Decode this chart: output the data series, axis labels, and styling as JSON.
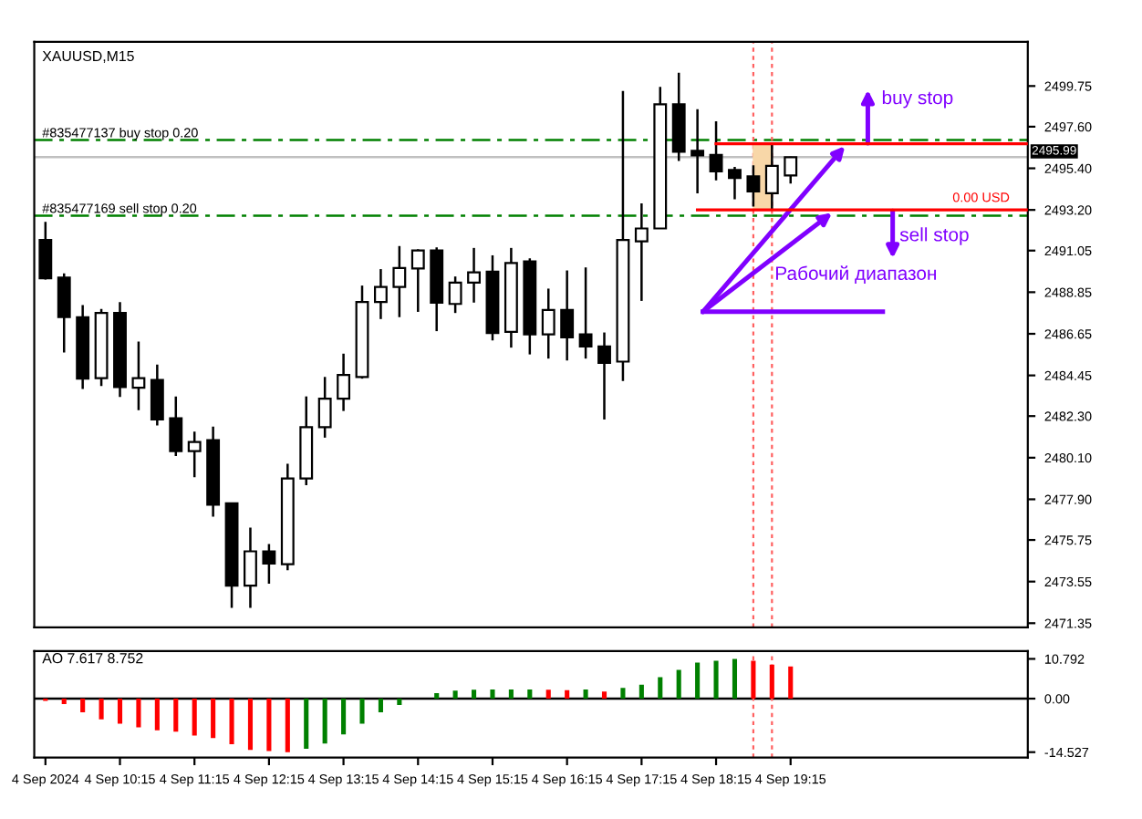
{
  "chart_data": [
    {
      "type": "candlestick",
      "title": "XAUUSD,M15",
      "x": [
        "2024-09-04T09:15",
        "2024-09-04T09:30",
        "2024-09-04T09:45",
        "2024-09-04T10:00",
        "2024-09-04T10:15",
        "2024-09-04T10:30",
        "2024-09-04T10:45",
        "2024-09-04T11:00",
        "2024-09-04T11:15",
        "2024-09-04T11:30",
        "2024-09-04T11:45",
        "2024-09-04T12:00",
        "2024-09-04T12:15",
        "2024-09-04T12:30",
        "2024-09-04T12:45",
        "2024-09-04T13:00",
        "2024-09-04T13:15",
        "2024-09-04T13:30",
        "2024-09-04T13:45",
        "2024-09-04T14:00",
        "2024-09-04T14:15",
        "2024-09-04T14:30",
        "2024-09-04T14:45",
        "2024-09-04T15:00",
        "2024-09-04T15:15",
        "2024-09-04T15:30",
        "2024-09-04T15:45",
        "2024-09-04T16:00",
        "2024-09-04T16:15",
        "2024-09-04T16:30",
        "2024-09-04T16:45",
        "2024-09-04T17:00",
        "2024-09-04T17:15",
        "2024-09-04T17:30",
        "2024-09-04T17:45",
        "2024-09-04T18:00",
        "2024-09-04T18:15",
        "2024-09-04T18:30",
        "2024-09-04T18:45",
        "2024-09-04T19:00",
        "2024-09-04T19:15"
      ],
      "ohlc": [
        [
          2491.61,
          2492.57,
          2489.52,
          2489.58
        ],
        [
          2489.62,
          2489.84,
          2485.66,
          2487.53
        ],
        [
          2487.53,
          2488.17,
          2483.73,
          2484.28
        ],
        [
          2484.31,
          2487.97,
          2483.89,
          2487.75
        ],
        [
          2487.75,
          2488.33,
          2483.31,
          2483.83
        ],
        [
          2483.8,
          2486.24,
          2482.61,
          2484.31
        ],
        [
          2484.21,
          2485.02,
          2481.8,
          2482.12
        ],
        [
          2482.19,
          2483.34,
          2480.19,
          2480.45
        ],
        [
          2480.45,
          2481.48,
          2479.07,
          2480.93
        ],
        [
          2481.03,
          2481.74,
          2476.98,
          2477.62
        ],
        [
          2477.69,
          2477.72,
          2472.16,
          2473.34
        ],
        [
          2473.34,
          2476.4,
          2472.16,
          2475.15
        ],
        [
          2475.15,
          2475.53,
          2473.44,
          2474.5
        ],
        [
          2474.47,
          2479.78,
          2474.15,
          2479.0
        ],
        [
          2479.0,
          2483.34,
          2478.65,
          2481.71
        ],
        [
          2481.71,
          2484.37,
          2481.16,
          2483.22
        ],
        [
          2483.22,
          2485.6,
          2482.57,
          2484.47
        ],
        [
          2484.37,
          2489.2,
          2484.28,
          2488.33
        ],
        [
          2488.33,
          2490.07,
          2487.43,
          2489.13
        ],
        [
          2489.13,
          2491.29,
          2487.53,
          2490.13
        ],
        [
          2490.1,
          2491.12,
          2487.81,
          2491.06
        ],
        [
          2491.06,
          2491.22,
          2486.79,
          2488.3
        ],
        [
          2488.23,
          2489.68,
          2487.75,
          2489.36
        ],
        [
          2489.36,
          2491.19,
          2488.3,
          2489.9
        ],
        [
          2489.94,
          2490.8,
          2486.3,
          2486.69
        ],
        [
          2486.75,
          2491.19,
          2485.92,
          2490.39
        ],
        [
          2490.48,
          2490.64,
          2485.56,
          2486.62
        ],
        [
          2486.62,
          2489.04,
          2485.34,
          2487.91
        ],
        [
          2487.91,
          2490.0,
          2485.24,
          2486.46
        ],
        [
          2486.62,
          2490.16,
          2485.34,
          2485.98
        ],
        [
          2485.98,
          2486.72,
          2482.12,
          2485.11
        ],
        [
          2485.18,
          2499.49,
          2484.15,
          2491.61
        ],
        [
          2491.54,
          2493.54,
          2488.39,
          2492.22
        ],
        [
          2492.22,
          2499.71,
          2492.22,
          2498.78
        ],
        [
          2498.78,
          2500.45,
          2495.79,
          2496.27
        ],
        [
          2496.33,
          2498.52,
          2494.08,
          2496.08
        ],
        [
          2496.11,
          2497.88,
          2494.76,
          2495.24
        ],
        [
          2495.31,
          2495.47,
          2493.76,
          2494.89
        ],
        [
          2494.98,
          2495.56,
          2493.38,
          2494.18
        ],
        [
          2494.08,
          2496.75,
          2493.22,
          2495.53
        ],
        [
          2495.02,
          2496.02,
          2494.6,
          2495.99
        ]
      ],
      "colors": [
        "#000000",
        "#000000",
        "#000000",
        "#ffffff",
        "#000000",
        "#ffffff",
        "#000000",
        "#000000",
        "#ffffff",
        "#000000",
        "#000000",
        "#ffffff",
        "#000000",
        "#ffffff",
        "#ffffff",
        "#ffffff",
        "#ffffff",
        "#ffffff",
        "#ffffff",
        "#ffffff",
        "#ffffff",
        "#000000",
        "#ffffff",
        "#ffffff",
        "#000000",
        "#ffffff",
        "#000000",
        "#ffffff",
        "#000000",
        "#000000",
        "#000000",
        "#ffffff",
        "#ffffff",
        "#ffffff",
        "#000000",
        "#000000",
        "#000000",
        "#000000",
        "#000000",
        "#ffffff",
        "#ffffff"
      ],
      "series": [
        {
          "type": "bar",
          "x": [
            "2024-09-04T18:52"
          ],
          "base": [
            2493.2
          ],
          "values": [
            3.5
          ],
          "color": "#f8d7a8"
        },
        {
          "type": "line",
          "x": [
            "2024-09-04T18:15",
            "2024-09-04T22:26"
          ],
          "values": [
            2496.7,
            2496.7
          ],
          "color": "#ff0000"
        },
        {
          "type": "line",
          "x": [
            "2024-09-04T18:00",
            "2024-09-04T22:26"
          ],
          "values": [
            2493.2,
            2493.2
          ],
          "color": "#ff0000"
        }
      ],
      "xlim": [
        "2024-09-04T09:06",
        "2024-09-04T22:26"
      ],
      "ylim": [
        2471.13,
        2502.09
      ],
      "yticks": [
        {
          "value": 2499.75,
          "label": "2499.75"
        },
        {
          "value": 2497.6,
          "label": "2497.60"
        },
        {
          "value": 2495.4,
          "label": "2495.40"
        },
        {
          "value": 2493.2,
          "label": "2493.20"
        },
        {
          "value": 2491.05,
          "label": "2491.05"
        },
        {
          "value": 2488.85,
          "label": "2488.85"
        },
        {
          "value": 2486.65,
          "label": "2486.65"
        },
        {
          "value": 2484.45,
          "label": "2484.45"
        },
        {
          "value": 2482.3,
          "label": "2482.30"
        },
        {
          "value": 2480.1,
          "label": "2480.10"
        },
        {
          "value": 2477.9,
          "label": "2477.90"
        },
        {
          "value": 2475.75,
          "label": "2475.75"
        },
        {
          "value": 2473.55,
          "label": "2473.55"
        },
        {
          "value": 2471.35,
          "label": "2471.35"
        }
      ],
      "tick_labels": "y",
      "ref_lines": [
        {
          "axis": "y",
          "value": 2496.9,
          "label": "#835477137 buy stop 0.20",
          "color": "#008000",
          "line_style": "dashed"
        },
        {
          "axis": "y",
          "value": 2492.9,
          "label": "#835477169 sell stop 0.20",
          "color": "#008000",
          "line_style": "dashed"
        },
        {
          "axis": "y",
          "value": 2495.99,
          "color": "#c0c0c0",
          "line_style": "solid"
        },
        {
          "axis": "x",
          "value": "2024-09-04T18:45",
          "color": "#ff6060",
          "line_style": "dotted"
        },
        {
          "axis": "x",
          "value": "2024-09-04T19:00",
          "color": "#ff6060",
          "line_style": "dotted"
        }
      ],
      "annotations": [
        "buy stop",
        "sell stop",
        "Рабочий диапазон",
        "0.00 USD",
        "2495.99"
      ],
      "grid": false,
      "legend": false
    },
    {
      "type": "bar",
      "title": "AO 7.617 8.752",
      "x": [
        "2024-09-04T09:15",
        "2024-09-04T09:30",
        "2024-09-04T09:45",
        "2024-09-04T10:00",
        "2024-09-04T10:15",
        "2024-09-04T10:30",
        "2024-09-04T10:45",
        "2024-09-04T11:00",
        "2024-09-04T11:15",
        "2024-09-04T11:30",
        "2024-09-04T11:45",
        "2024-09-04T12:00",
        "2024-09-04T12:15",
        "2024-09-04T12:30",
        "2024-09-04T12:45",
        "2024-09-04T13:00",
        "2024-09-04T13:15",
        "2024-09-04T13:30",
        "2024-09-04T13:45",
        "2024-09-04T14:00",
        "2024-09-04T14:15",
        "2024-09-04T14:30",
        "2024-09-04T14:45",
        "2024-09-04T15:00",
        "2024-09-04T15:15",
        "2024-09-04T15:30",
        "2024-09-04T15:45",
        "2024-09-04T16:00",
        "2024-09-04T16:15",
        "2024-09-04T16:30",
        "2024-09-04T16:45",
        "2024-09-04T17:00",
        "2024-09-04T17:15",
        "2024-09-04T17:30",
        "2024-09-04T17:45",
        "2024-09-04T18:00",
        "2024-09-04T18:15",
        "2024-09-04T18:30",
        "2024-09-04T18:45",
        "2024-09-04T19:00",
        "2024-09-04T19:15"
      ],
      "values": [
        -0.6,
        -1.5,
        -3.7,
        -5.6,
        -6.8,
        -7.8,
        -8.6,
        -9.0,
        -10.0,
        -10.7,
        -12.4,
        -13.9,
        -14.2,
        -14.527,
        -13.6,
        -12.2,
        -9.7,
        -6.8,
        -3.7,
        -1.7,
        null,
        1.5,
        2.2,
        2.4,
        2.5,
        2.5,
        2.5,
        2.4,
        2.3,
        2.5,
        1.9,
        2.9,
        3.8,
        5.8,
        7.8,
        9.8,
        10.3,
        10.792,
        10.3,
        9.2,
        8.752
      ],
      "colors": [
        "#ff0000",
        "#ff0000",
        "#ff0000",
        "#ff0000",
        "#ff0000",
        "#ff0000",
        "#ff0000",
        "#ff0000",
        "#ff0000",
        "#ff0000",
        "#ff0000",
        "#ff0000",
        "#ff0000",
        "#ff0000",
        "#008000",
        "#008000",
        "#008000",
        "#008000",
        "#008000",
        "#008000",
        "#008000",
        "#008000",
        "#008000",
        "#008000",
        "#008000",
        "#008000",
        "#008000",
        "#ff0000",
        "#ff0000",
        "#008000",
        "#ff0000",
        "#008000",
        "#008000",
        "#008000",
        "#008000",
        "#008000",
        "#008000",
        "#008000",
        "#ff0000",
        "#ff0000",
        "#ff0000"
      ],
      "xlim": [
        "2024-09-04T09:06",
        "2024-09-04T22:26"
      ],
      "ylim": [
        -16.0,
        12.9
      ],
      "xticks": [
        {
          "value": "2024-09-04T09:15",
          "label": "4 Sep 2024"
        },
        {
          "value": "2024-09-04T10:15",
          "label": "4 Sep 10:15"
        },
        {
          "value": "2024-09-04T11:15",
          "label": "4 Sep 11:15"
        },
        {
          "value": "2024-09-04T12:15",
          "label": "4 Sep 12:15"
        },
        {
          "value": "2024-09-04T13:15",
          "label": "4 Sep 13:15"
        },
        {
          "value": "2024-09-04T14:15",
          "label": "4 Sep 14:15"
        },
        {
          "value": "2024-09-04T15:15",
          "label": "4 Sep 15:15"
        },
        {
          "value": "2024-09-04T16:15",
          "label": "4 Sep 16:15"
        },
        {
          "value": "2024-09-04T17:15",
          "label": "4 Sep 17:15"
        },
        {
          "value": "2024-09-04T18:15",
          "label": "4 Sep 18:15"
        },
        {
          "value": "2024-09-04T19:15",
          "label": "4 Sep 19:15"
        }
      ],
      "yticks": [
        10.792,
        {
          "value": 0,
          "label": "0.00"
        },
        -14.527
      ],
      "ref_lines": [
        {
          "axis": "y",
          "value": 0,
          "color": "#000000",
          "line_style": "solid"
        },
        {
          "axis": "x",
          "value": "2024-09-04T18:45",
          "color": "#ff6060",
          "line_style": "dotted"
        },
        {
          "axis": "x",
          "value": "2024-09-04T19:00",
          "color": "#ff6060",
          "line_style": "dotted"
        }
      ],
      "grid": false,
      "legend": false
    }
  ]
}
